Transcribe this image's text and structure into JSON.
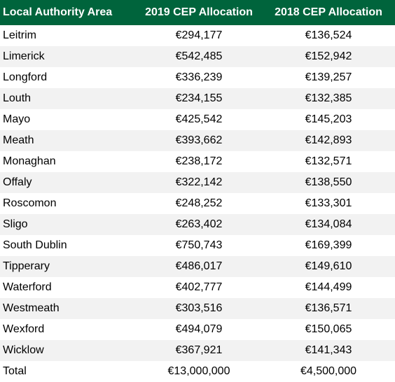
{
  "table": {
    "headers": [
      "Local Authority Area",
      "2019 CEP Allocation",
      "2018 CEP Allocation"
    ],
    "rows": [
      [
        "Leitrim",
        "€294,177",
        "€136,524"
      ],
      [
        "Limerick",
        "€542,485",
        "€152,942"
      ],
      [
        "Longford",
        "€336,239",
        "€139,257"
      ],
      [
        "Louth",
        "€234,155",
        "€132,385"
      ],
      [
        "Mayo",
        "€425,542",
        "€145,203"
      ],
      [
        "Meath",
        "€393,662",
        "€142,893"
      ],
      [
        "Monaghan",
        "€238,172",
        "€132,571"
      ],
      [
        "Offaly",
        "€322,142",
        "€138,550"
      ],
      [
        "Roscomon",
        "€248,252",
        "€133,301"
      ],
      [
        "Sligo",
        "€263,402",
        "€134,084"
      ],
      [
        "South Dublin",
        "€750,743",
        "€169,399"
      ],
      [
        "Tipperary",
        "€486,017",
        "€149,610"
      ],
      [
        "Waterford",
        "€402,777",
        "€144,499"
      ],
      [
        "Westmeath",
        "€303,516",
        "€136,571"
      ],
      [
        "Wexford",
        "€494,079",
        "€150,065"
      ],
      [
        "Wicklow",
        "€367,921",
        "€141,343"
      ]
    ],
    "total": [
      "Total",
      "€13,000,000",
      "€4,500,000"
    ]
  },
  "colors": {
    "header_bg": "#00643c",
    "header_text": "#ffffff",
    "stripe": "#f2f2f2"
  }
}
